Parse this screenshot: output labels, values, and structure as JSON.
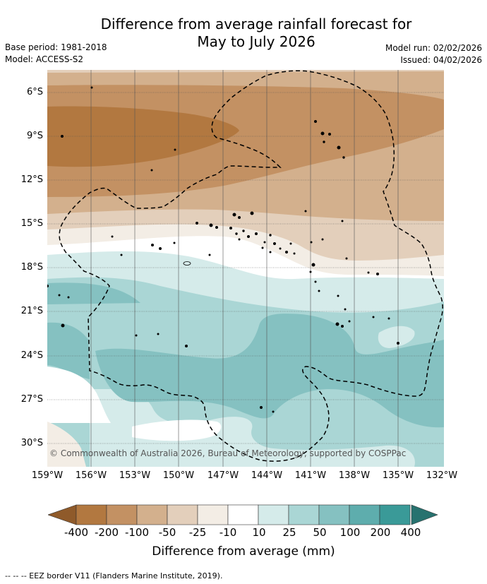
{
  "title_line1": "Difference from average rainfall forecast for",
  "title_line2": "May to July 2026",
  "base_period": "Base period: 1981-2018",
  "model": "Model: ACCESS-S2",
  "model_run": "Model run: 02/02/2026",
  "issued": "Issued: 04/02/2026",
  "lat_labels": [
    "6°S",
    "9°S",
    "12°S",
    "15°S",
    "18°S",
    "21°S",
    "24°S",
    "27°S",
    "30°S"
  ],
  "lon_labels": [
    "159°W",
    "156°W",
    "153°W",
    "150°W",
    "147°W",
    "144°W",
    "141°W",
    "138°W",
    "135°W",
    "132°W"
  ],
  "copyright": "© Commonwealth of Australia 2026, Bureau of Meteorology, supported by COSPPac",
  "colorbar": {
    "labels": [
      "-400",
      "-200",
      "-100",
      "-50",
      "-25",
      "-10",
      "10",
      "25",
      "50",
      "100",
      "200",
      "400"
    ],
    "colors": [
      "#8f5a2a",
      "#b27840",
      "#c39163",
      "#d3b08d",
      "#e3cfbb",
      "#f3ede5",
      "#ffffff",
      "#d5ebea",
      "#aad6d5",
      "#85c1c1",
      "#5eadad",
      "#3a9a98",
      "#27726f"
    ],
    "title": "Difference from average (mm)"
  },
  "footer": "--  --  -- EEZ border V11 (Flanders Marine Institute, 2019).",
  "map_colors": {
    "extreme_dry": "#8f5a2a",
    "very_dry": "#b27840",
    "dry": "#c39163",
    "moderate_dry": "#d3b08d",
    "slight_dry": "#e3cfbb",
    "near_dry": "#f3ede5",
    "neutral": "#ffffff",
    "slight_wet": "#d5ebea",
    "wet": "#aad6d5",
    "more_wet": "#85c1c1"
  }
}
